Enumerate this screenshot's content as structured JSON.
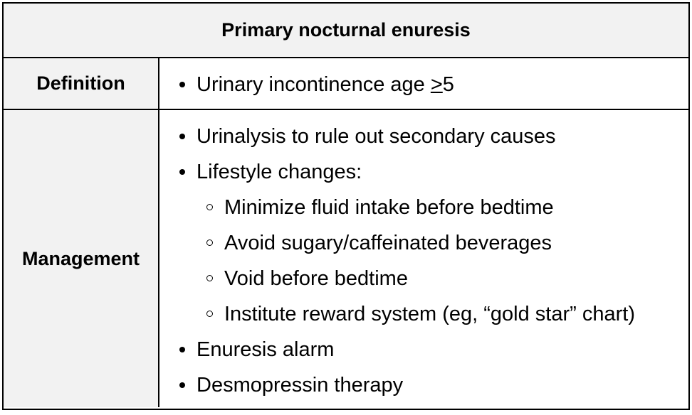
{
  "title": "Primary nocturnal enuresis",
  "definition": {
    "label": "Definition",
    "item_prefix": "Urinary incontinence age ",
    "item_symbol": ">",
    "item_suffix": "5"
  },
  "management": {
    "label": "Management",
    "items": [
      "Urinalysis to rule out secondary causes",
      "Lifestyle changes:",
      "Enuresis alarm",
      "Desmopressin therapy"
    ],
    "subitems": [
      "Minimize fluid intake before bedtime",
      "Avoid sugary/caffeinated beverages",
      "Void before bedtime",
      "Institute reward system (eg, “gold star” chart)"
    ]
  }
}
